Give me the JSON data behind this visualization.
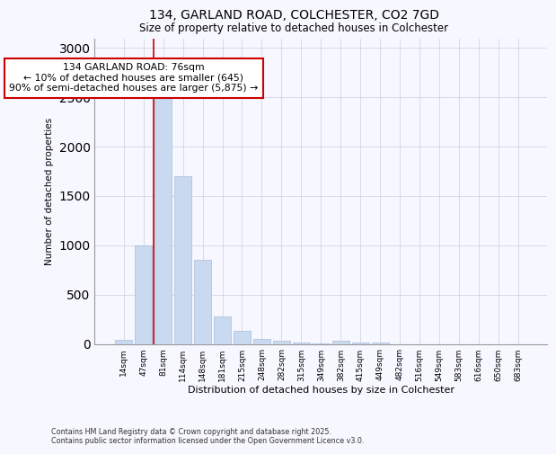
{
  "title1": "134, GARLAND ROAD, COLCHESTER, CO2 7GD",
  "title2": "Size of property relative to detached houses in Colchester",
  "xlabel": "Distribution of detached houses by size in Colchester",
  "ylabel": "Number of detached properties",
  "categories": [
    "14sqm",
    "47sqm",
    "81sqm",
    "114sqm",
    "148sqm",
    "181sqm",
    "215sqm",
    "248sqm",
    "282sqm",
    "315sqm",
    "349sqm",
    "382sqm",
    "415sqm",
    "449sqm",
    "482sqm",
    "516sqm",
    "549sqm",
    "583sqm",
    "616sqm",
    "650sqm",
    "683sqm"
  ],
  "values": [
    40,
    1000,
    2500,
    1700,
    850,
    275,
    130,
    50,
    30,
    10,
    5,
    30,
    10,
    10,
    0,
    0,
    0,
    0,
    0,
    0,
    0
  ],
  "bar_color": "#c8d9f0",
  "bar_edge_color": "#aabbd8",
  "vline_color": "#cc0000",
  "vline_pos": 1.5,
  "annotation_text": "134 GARLAND ROAD: 76sqm\n← 10% of detached houses are smaller (645)\n90% of semi-detached houses are larger (5,875) →",
  "annotation_box_color": "#ffffff",
  "annotation_box_edge": "#cc0000",
  "ylim": [
    0,
    3100
  ],
  "yticks": [
    0,
    500,
    1000,
    1500,
    2000,
    2500,
    3000
  ],
  "bg_color": "#f7f7ff",
  "grid_color": "#c8cfe0",
  "footer1": "Contains HM Land Registry data © Crown copyright and database right 2025.",
  "footer2": "Contains public sector information licensed under the Open Government Licence v3.0."
}
